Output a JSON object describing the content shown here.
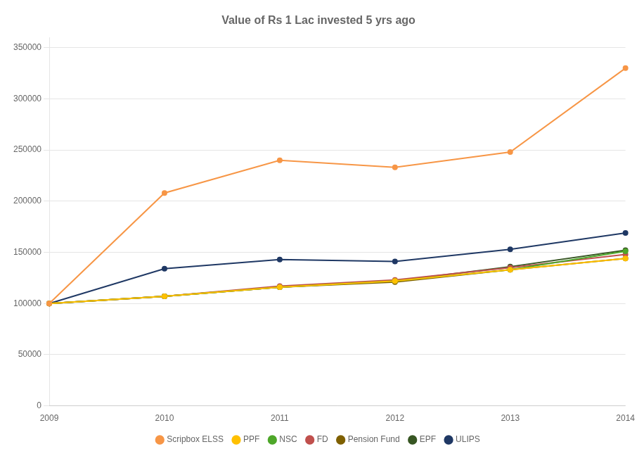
{
  "chart_data": {
    "type": "line",
    "title": "Value of Rs 1 Lac invested 5 yrs ago",
    "categories": [
      "2009",
      "2010",
      "2011",
      "2012",
      "2013",
      "2014"
    ],
    "series": [
      {
        "name": "Scripbox ELSS",
        "color": "#F79646",
        "marker": "circle",
        "values": [
          100000,
          208000,
          240000,
          233000,
          248000,
          330000
        ]
      },
      {
        "name": "PPF",
        "color": "#FFC000",
        "marker": "circle",
        "values": [
          100000,
          107000,
          116000,
          122000,
          133000,
          144000
        ]
      },
      {
        "name": "NSC",
        "color": "#4EA72A",
        "marker": "circle",
        "values": [
          100000,
          107000,
          116000,
          122000,
          133000,
          151000
        ]
      },
      {
        "name": "FD",
        "color": "#C0504D",
        "marker": "circle",
        "values": [
          100000,
          107000,
          117000,
          123000,
          135000,
          148000
        ]
      },
      {
        "name": "Pension Fund",
        "color": "#7F6000",
        "marker": "circle",
        "values": [
          100000,
          107000,
          116000,
          121000,
          133000,
          144000
        ]
      },
      {
        "name": "EPF",
        "color": "#375623",
        "marker": "circle",
        "values": [
          100000,
          107000,
          116000,
          122000,
          136000,
          152000
        ]
      },
      {
        "name": "ULIPS",
        "color": "#1F3864",
        "marker": "circle",
        "values": [
          100000,
          134000,
          143000,
          141000,
          153000,
          169000
        ]
      }
    ],
    "ylim": [
      0,
      360000
    ],
    "yticks": [
      0,
      50000,
      100000,
      150000,
      200000,
      250000,
      300000,
      350000
    ],
    "grid": true,
    "legend": "bottom"
  }
}
